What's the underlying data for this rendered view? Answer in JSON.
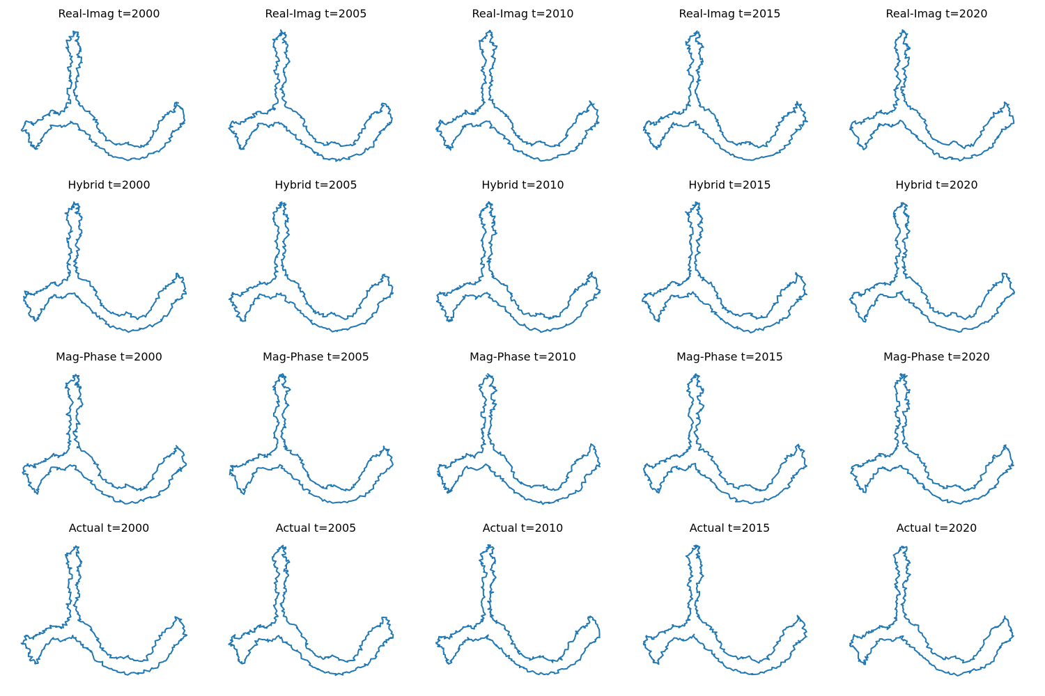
{
  "chart_data": {
    "type": "line",
    "series_color": "#1f77b4",
    "grid": false,
    "axes_visible": false,
    "legend": "none",
    "description_rows": [
      "Real-Imag",
      "Hybrid",
      "Mag-Phase",
      "Actual"
    ],
    "description_cols": [
      "t=2000",
      "t=2005",
      "t=2010",
      "t=2015",
      "t=2020"
    ],
    "panels": [
      {
        "title": "Real-Imag t=2000",
        "row": 0,
        "col": 0
      },
      {
        "title": "Real-Imag t=2005",
        "row": 0,
        "col": 1
      },
      {
        "title": "Real-Imag t=2010",
        "row": 0,
        "col": 2
      },
      {
        "title": "Real-Imag t=2015",
        "row": 0,
        "col": 3
      },
      {
        "title": "Real-Imag t=2020",
        "row": 0,
        "col": 4
      },
      {
        "title": "Hybrid t=2000",
        "row": 1,
        "col": 0
      },
      {
        "title": "Hybrid t=2005",
        "row": 1,
        "col": 1
      },
      {
        "title": "Hybrid t=2010",
        "row": 1,
        "col": 2
      },
      {
        "title": "Hybrid t=2015",
        "row": 1,
        "col": 3
      },
      {
        "title": "Hybrid t=2020",
        "row": 1,
        "col": 4
      },
      {
        "title": "Mag-Phase t=2000",
        "row": 2,
        "col": 0
      },
      {
        "title": "Mag-Phase t=2005",
        "row": 2,
        "col": 1
      },
      {
        "title": "Mag-Phase t=2010",
        "row": 2,
        "col": 2
      },
      {
        "title": "Mag-Phase t=2015",
        "row": 2,
        "col": 3
      },
      {
        "title": "Mag-Phase t=2020",
        "row": 2,
        "col": 4
      },
      {
        "title": "Actual t=2000",
        "row": 3,
        "col": 0
      },
      {
        "title": "Actual t=2005",
        "row": 3,
        "col": 1
      },
      {
        "title": "Actual t=2010",
        "row": 3,
        "col": 2
      },
      {
        "title": "Actual t=2015",
        "row": 3,
        "col": 3
      },
      {
        "title": "Actual t=2020",
        "row": 3,
        "col": 4
      }
    ]
  }
}
